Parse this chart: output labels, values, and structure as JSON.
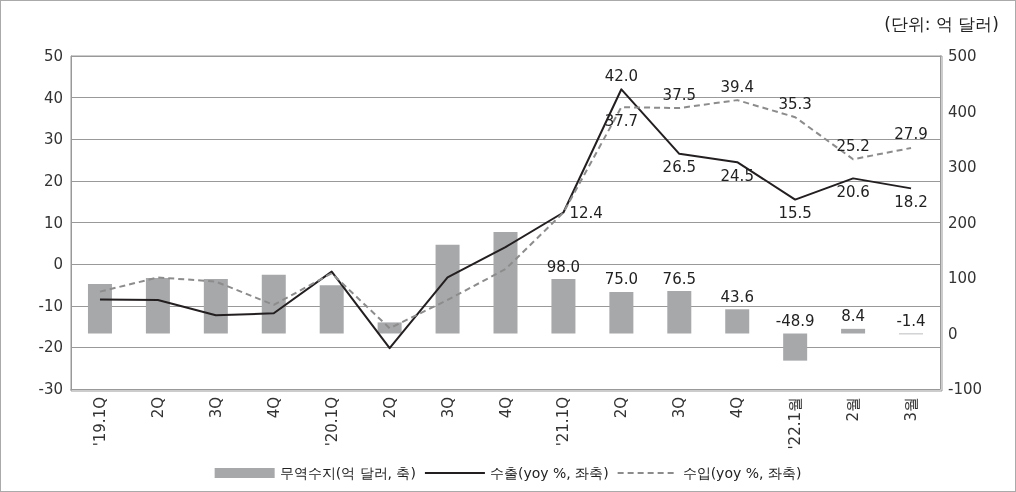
{
  "chart_data": {
    "type": "bar",
    "annotations": [
      "(단위: 억 달러)"
    ],
    "categories": [
      "'19.1Q",
      "2Q",
      "3Q",
      "4Q",
      "'20.1Q",
      "2Q",
      "3Q",
      "4Q",
      "'21.1Q",
      "2Q",
      "3Q",
      "4Q",
      "'22.1월",
      "2월",
      "3월"
    ],
    "series": [
      {
        "name": "무역수지(억 달러, 축)",
        "axis": "y2",
        "color": "#a7a8aa",
        "values": [
          89,
          100,
          98,
          106,
          87,
          20,
          160,
          183,
          98.0,
          75.0,
          76.5,
          43.6,
          -48.9,
          8.4,
          -1.4
        ],
        "value_labels": [
          null,
          null,
          null,
          null,
          null,
          null,
          null,
          null,
          "98.0",
          "75.0",
          "76.5",
          "43.6",
          "-48.9",
          "8.4",
          "-1.4"
        ]
      },
      {
        "name": "수출(yoy %, 좌축)",
        "type": "line",
        "color": "#231f20",
        "line_style": "solid",
        "values": [
          -8.5,
          -8.6,
          -12.3,
          -11.8,
          -1.8,
          -20.2,
          -3.2,
          4.1,
          12.4,
          42.0,
          26.5,
          24.5,
          15.5,
          20.6,
          18.2
        ],
        "value_labels": [
          null,
          null,
          null,
          null,
          null,
          null,
          null,
          null,
          "12.4",
          "42.0",
          "26.5",
          "24.5",
          "15.5",
          "20.6",
          "18.2"
        ]
      },
      {
        "name": "수입(yoy %, 좌축)",
        "type": "line",
        "color": "#8c8c8c",
        "line_style": "dashed",
        "values": [
          -6.6,
          -3.2,
          -4.2,
          -9.8,
          -2.2,
          -15.4,
          -8.6,
          -1.2,
          12.4,
          37.7,
          37.5,
          39.4,
          35.3,
          25.2,
          27.9
        ],
        "value_labels": [
          null,
          null,
          null,
          null,
          null,
          null,
          null,
          null,
          null,
          "37.7",
          "37.5",
          "39.4",
          "35.3",
          "25.2",
          "27.9"
        ]
      }
    ],
    "ylim": [
      -30,
      50
    ],
    "yticks": [
      -30,
      -20,
      -10,
      0,
      10,
      20,
      30,
      40,
      50
    ],
    "y2lim": [
      -100,
      500
    ],
    "y2ticks": [
      -100,
      0,
      100,
      200,
      300,
      400,
      500
    ],
    "grid": "y",
    "legend": "bottom",
    "marker": "none"
  }
}
